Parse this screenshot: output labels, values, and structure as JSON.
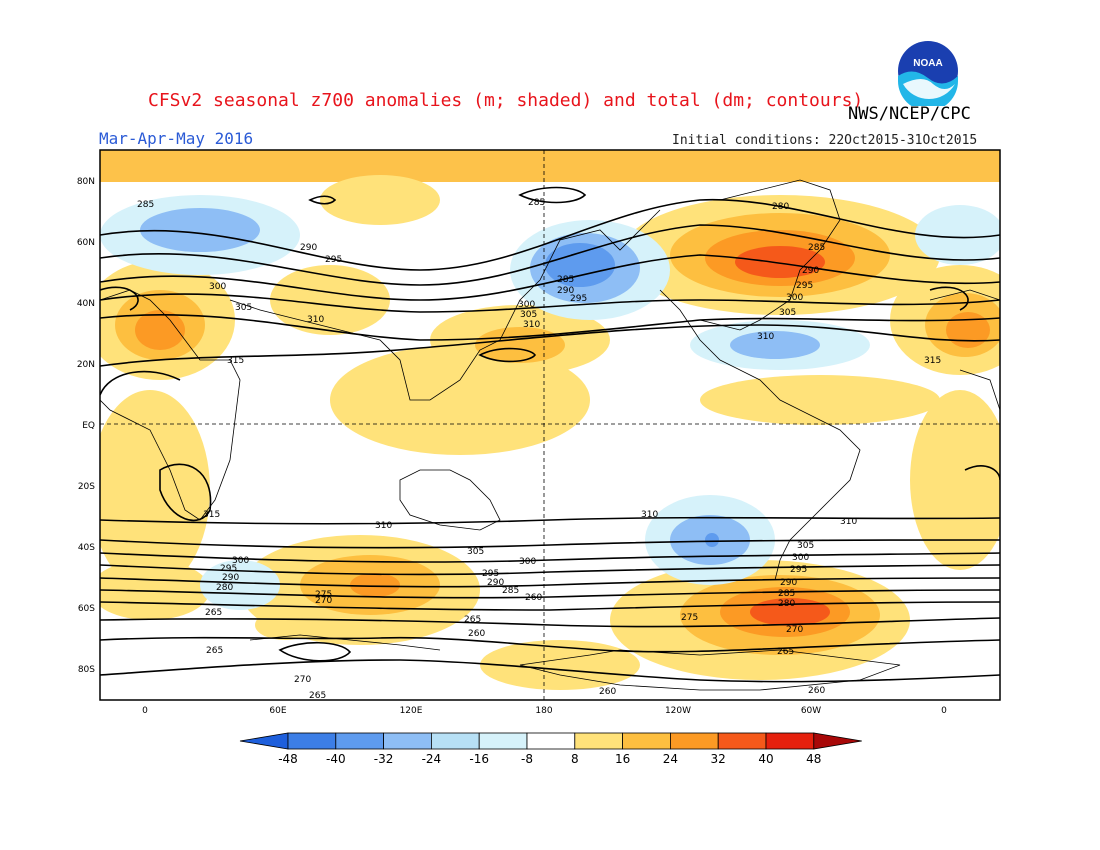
{
  "title": "CFSv2 seasonal z700 anomalies (m; shaded) and total (dm; contours)",
  "agency": "NWS/NCEP/CPC",
  "season": "Mar-Apr-May 2016",
  "initial_conditions": "Initial conditions: 22Oct2015-31Oct2015",
  "logo_text": "NOAA",
  "lat_labels": [
    "80N",
    "60N",
    "40N",
    "20N",
    "EQ",
    "20S",
    "40S",
    "60S",
    "80S"
  ],
  "lon_labels": [
    "0",
    "60E",
    "120E",
    "180",
    "120W",
    "60W",
    "0"
  ],
  "colorbar": {
    "ticks": [
      "-48",
      "-40",
      "-32",
      "-24",
      "-16",
      "-8",
      "8",
      "16",
      "24",
      "32",
      "40",
      "48"
    ],
    "colors": [
      "#1e5fdc",
      "#3c7ee6",
      "#5e9bee",
      "#8ebef5",
      "#b7e0f5",
      "#d6f2fa",
      "#ffffff",
      "#ffe27a",
      "#fdbf40",
      "#fc9a24",
      "#f5591a",
      "#e5200d",
      "#a80808"
    ]
  },
  "contour_labels": [
    "285",
    "290",
    "295",
    "300",
    "305",
    "310",
    "315",
    "280",
    "275",
    "270",
    "265",
    "260"
  ]
}
